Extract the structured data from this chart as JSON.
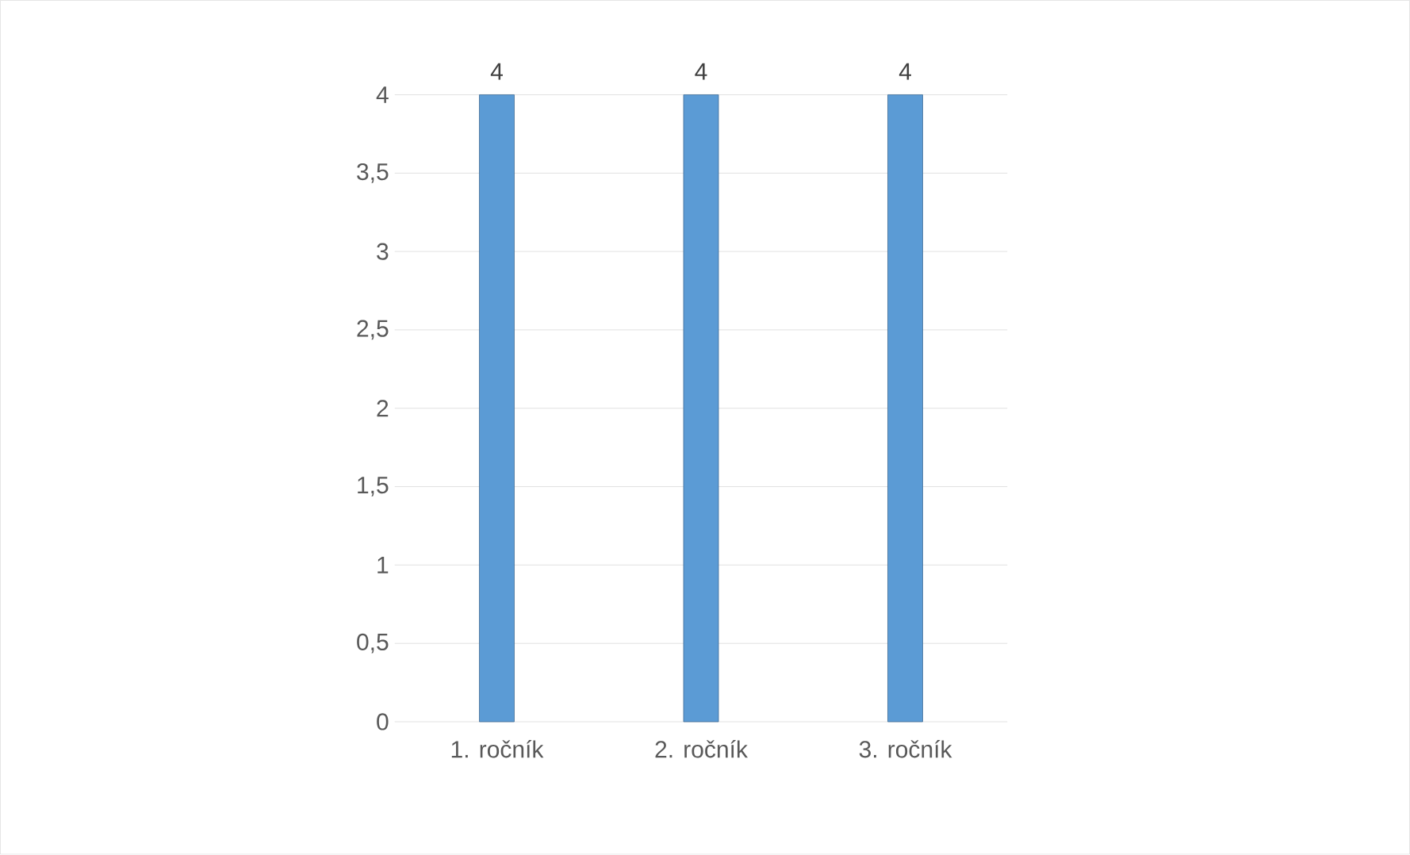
{
  "chart_data": {
    "type": "bar",
    "categories": [
      "1. ročník",
      "2. ročník",
      "3. ročník"
    ],
    "values": [
      4,
      4,
      4
    ],
    "color": "#5b9bd5",
    "data_labels": true,
    "grid": "y",
    "ylim": [
      0,
      4
    ],
    "yticks": [
      0,
      {
        "value": 0.5,
        "label": "0,5"
      },
      1,
      {
        "value": 1.5,
        "label": "1,5"
      },
      2,
      {
        "value": 2.5,
        "label": "2,5"
      },
      3,
      {
        "value": 3.5,
        "label": "3,5"
      },
      4
    ]
  }
}
